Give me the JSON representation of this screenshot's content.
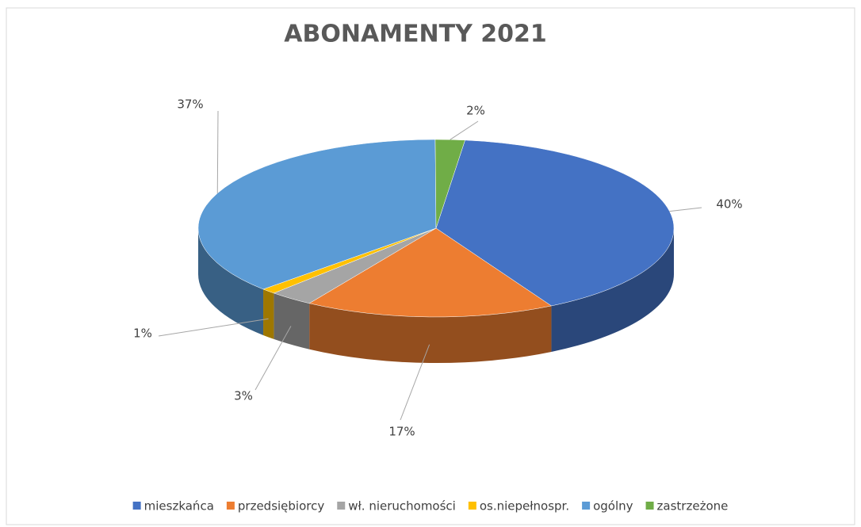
{
  "chart_data": {
    "type": "pie3d",
    "title": "ABONAMENTY 2021",
    "categories": [
      "mieszkańca",
      "przedsiębiorcy",
      "wł. nieruchomości",
      "os.niepełnospr.",
      "ogólny",
      "zastrzeżone"
    ],
    "values": [
      40,
      17,
      3,
      1,
      37,
      2
    ],
    "value_labels": [
      "40%",
      "17%",
      "3%",
      "1%",
      "37%",
      "2%"
    ],
    "colors": [
      "#4472c4",
      "#ed7d31",
      "#a5a5a5",
      "#ffc000",
      "#5b9bd5",
      "#70ad47"
    ],
    "legend": "bottom"
  }
}
